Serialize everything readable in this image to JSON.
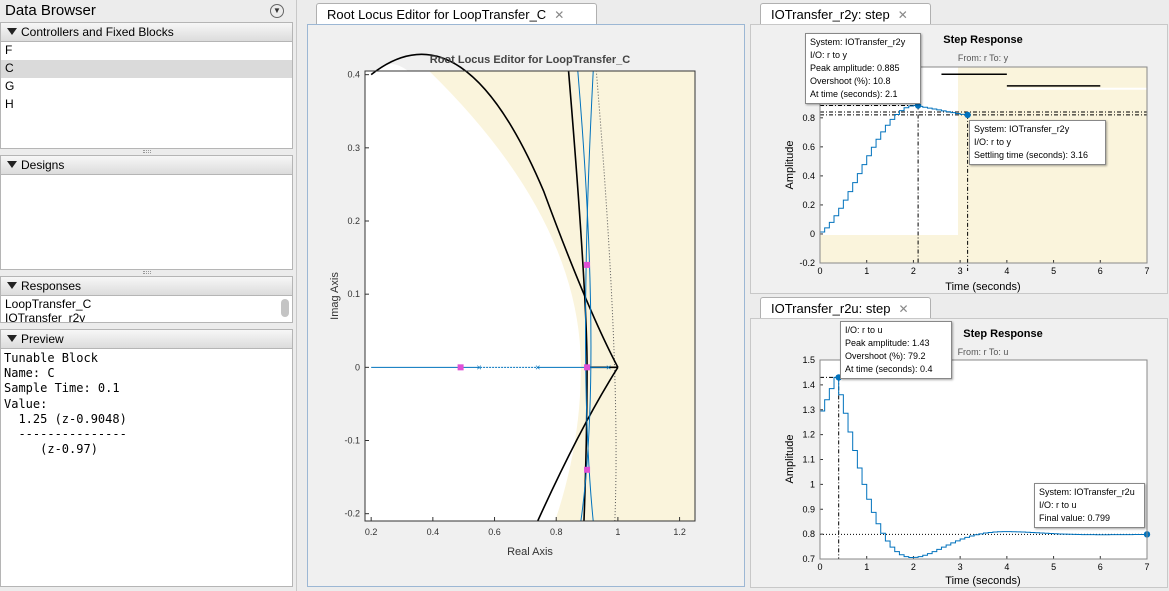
{
  "data_browser": {
    "title": "Data Browser",
    "menu_icon": "circle-chevron-down-icon",
    "sections": {
      "controllers": {
        "label": "Controllers and Fixed Blocks",
        "items": [
          "F",
          "C",
          "G",
          "H"
        ],
        "selected": "C"
      },
      "designs": {
        "label": "Designs"
      },
      "responses": {
        "label": "Responses",
        "items": [
          "LoopTransfer_C",
          "IOTransfer_r2y"
        ]
      },
      "preview": {
        "label": "Preview",
        "lines": [
          "Tunable Block",
          "Name: C",
          "Sample Time: 0.1",
          "Value:",
          "  1.25 (z-0.9048)",
          "  ---------------",
          "     (z-0.97)"
        ]
      }
    }
  },
  "root_locus": {
    "tab_label": "Root Locus Editor for LoopTransfer_C",
    "close_icon": "close-icon",
    "colors": {
      "region": "#faf4dc",
      "locus": "#0072bd"
    },
    "chart_data": {
      "type": "scatter",
      "title": "Root Locus Editor for LoopTransfer_C",
      "xlabel": "Real Axis",
      "ylabel": "Imag Axis",
      "xlim": [
        0.18,
        1.25
      ],
      "ylim": [
        -0.21,
        0.405
      ],
      "xticks": [
        "0.2",
        "0.4",
        "0.6",
        "0.8",
        "1",
        "1.2"
      ],
      "yticks": [
        "-0.2",
        "-0.1",
        "0",
        "0.1",
        "0.2",
        "0.3",
        "0.4"
      ],
      "open_loop_poles": [
        [
          0.55,
          0
        ],
        [
          0.74,
          0
        ],
        [
          0.97,
          0
        ]
      ],
      "closed_loop_poles": [
        [
          0.9,
          0.14
        ],
        [
          0.9,
          -0.14
        ],
        [
          0.9,
          0
        ],
        [
          0.49,
          0
        ]
      ],
      "grid": false
    }
  },
  "step_r2y": {
    "tab_label": "IOTransfer_r2y: step",
    "close_icon": "close-icon",
    "chart_data": {
      "type": "line",
      "title": "Step Response",
      "subtitle": "From: r  To: y",
      "xlabel": "Time (seconds)",
      "ylabel": "Amplitude",
      "xlim": [
        0,
        7
      ],
      "ylim": [
        -0.2,
        1.15
      ],
      "xticks": [
        "0",
        "1",
        "2",
        "3",
        "4",
        "5",
        "6",
        "7"
      ],
      "yticks": [
        "-0.2",
        "0",
        "0.2",
        "0.4",
        "0.6",
        "0.8"
      ],
      "peak": {
        "t": 2.1,
        "y": 0.885
      },
      "settling": {
        "t": 3.16,
        "y": 0.82
      }
    },
    "tooltips": {
      "peak": [
        "System: IOTransfer_r2y",
        "I/O: r to y",
        "Peak amplitude: 0.885",
        "Overshoot (%): 10.8",
        "At time (seconds): 2.1"
      ],
      "settling": [
        "System: IOTransfer_r2y",
        "I/O: r to y",
        "Settling time (seconds): 3.16"
      ]
    }
  },
  "step_r2u": {
    "tab_label": "IOTransfer_r2u: step",
    "close_icon": "close-icon",
    "chart_data": {
      "type": "line",
      "title": "Step Response",
      "subtitle": "From: r  To: u",
      "xlabel": "Time (seconds)",
      "ylabel": "Amplitude",
      "xlim": [
        0,
        7
      ],
      "ylim": [
        0.7,
        1.5
      ],
      "xticks": [
        "0",
        "1",
        "2",
        "3",
        "4",
        "5",
        "6",
        "7"
      ],
      "yticks": [
        "0.7",
        "0.8",
        "0.9",
        "1",
        "1.1",
        "1.2",
        "1.3",
        "1.4",
        "1.5"
      ],
      "peak": {
        "t": 0.4,
        "y": 1.43
      },
      "final": {
        "t": 7,
        "y": 0.799
      }
    },
    "tooltips": {
      "peak": [
        "I/O: r to u",
        "Peak amplitude: 1.43",
        "Overshoot (%): 79.2",
        "At time (seconds): 0.4"
      ],
      "final": [
        "System: IOTransfer_r2u",
        "I/O: r to u",
        "Final value: 0.799"
      ]
    }
  }
}
